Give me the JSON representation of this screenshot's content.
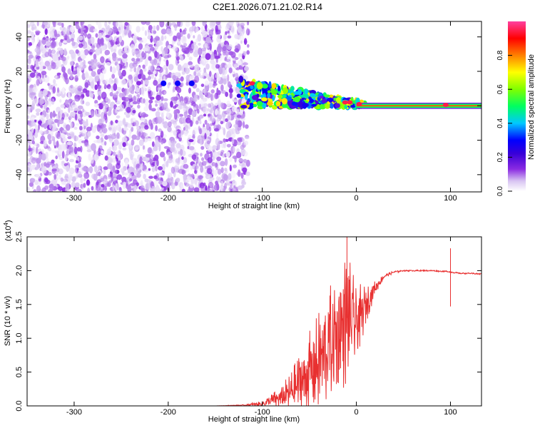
{
  "title": "C2E1.2026.071.21.02.R14",
  "chart_data": [
    {
      "type": "heatmap",
      "name": "spectrogram",
      "xlabel": "Height of straight line (km)",
      "ylabel": "Frequency (Hz)",
      "xlim": [
        -350,
        133
      ],
      "ylim": [
        -50,
        49
      ],
      "xticks": [
        -300,
        -200,
        -100,
        0,
        100
      ],
      "yticks": [
        -40,
        -20,
        0,
        20,
        40
      ],
      "colorbar": {
        "label": "Normalized spectral amplitude",
        "range": [
          0,
          1
        ],
        "ticks": [
          0.0,
          0.2,
          0.4,
          0.6,
          0.8
        ],
        "colormap": [
          "#ffffff",
          "#d8c4f2",
          "#8a2be2",
          "#3a00d8",
          "#0000ff",
          "#00c8ff",
          "#00ff60",
          "#80ff00",
          "#ffff00",
          "#ff8000",
          "#ff0000",
          "#ff40a0"
        ]
      },
      "regions": [
        {
          "description": "broadband noise",
          "x_range": [
            -350,
            -115
          ],
          "f_range": [
            -50,
            49
          ],
          "amplitude": 0.15
        },
        {
          "description": "converging signal",
          "x_range": [
            -125,
            10
          ],
          "f_center_start": 14,
          "f_center_end": 0,
          "amplitude": 0.55
        },
        {
          "description": "steady tone",
          "x_range": [
            0,
            133
          ],
          "f_center": 0,
          "amplitude": 0.85
        }
      ]
    },
    {
      "type": "line",
      "name": "snr",
      "xlabel": "Height of straight line (km)",
      "ylabel": "SNR (10 * v/v)",
      "scale_label": "(x10",
      "scale_exp": "4",
      "xlim": [
        -350,
        133
      ],
      "ylim": [
        0,
        2.5
      ],
      "xticks": [
        -300,
        -200,
        -100,
        0,
        100
      ],
      "yticks": [
        "0.0",
        "0.5",
        "1.0",
        "1.5",
        "2.0",
        "2.5"
      ],
      "series": [
        {
          "name": "SNR",
          "color": "#e83030",
          "x": [
            -350,
            -300,
            -250,
            -200,
            -150,
            -120,
            -100,
            -90,
            -80,
            -70,
            -60,
            -50,
            -40,
            -30,
            -20,
            -10,
            0,
            10,
            20,
            30,
            40,
            50,
            60,
            70,
            80,
            90,
            95,
            100,
            105,
            110,
            120,
            133
          ],
          "y": [
            0.0,
            0.0,
            0.0,
            0.0,
            0.0,
            0.01,
            0.03,
            0.08,
            0.12,
            0.2,
            0.35,
            0.5,
            0.65,
            0.85,
            1.05,
            1.3,
            1.2,
            1.5,
            1.75,
            1.92,
            1.98,
            2.0,
            2.0,
            2.0,
            2.0,
            1.99,
            1.99,
            1.98,
            1.97,
            1.96,
            1.96,
            1.95
          ],
          "noise_amp": [
            0,
            0,
            0,
            0,
            0,
            0.01,
            0.04,
            0.1,
            0.18,
            0.3,
            0.45,
            0.6,
            0.75,
            0.9,
            1.0,
            1.0,
            0.6,
            0.3,
            0.1,
            0.03,
            0.02,
            0.01,
            0.01,
            0.01,
            0.01,
            0.01,
            0.01,
            0.01,
            0.01,
            0.01,
            0.01,
            0.01
          ]
        }
      ],
      "spikes": [
        {
          "x": -10,
          "y": 2.5
        },
        {
          "x": 100,
          "y": 2.33
        },
        {
          "x": 100,
          "y": 1.47
        }
      ]
    }
  ]
}
